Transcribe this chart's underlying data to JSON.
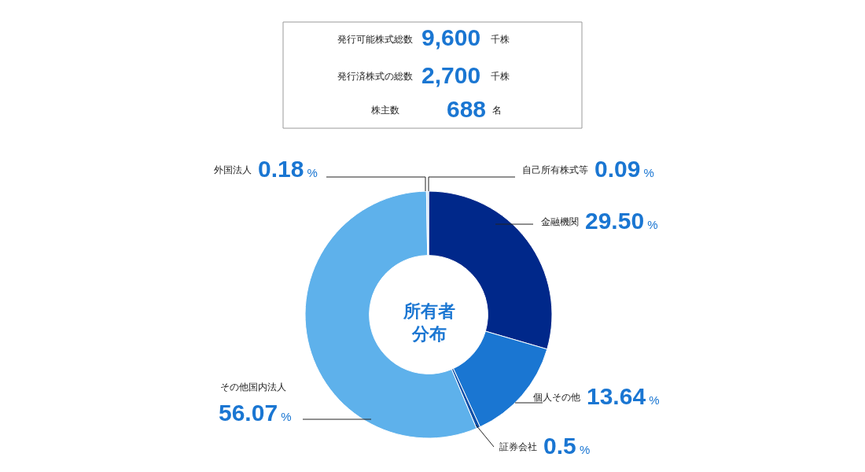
{
  "chart_data": [
    {
      "type": "other",
      "annotations": [
        "発行可能株式総数",
        "9,600",
        "千株",
        "発行済株式の総数",
        "2,700",
        "千株",
        "株主数",
        "688",
        "名"
      ]
    },
    {
      "type": "donut",
      "title": "所有者分布",
      "categories": [
        "金融機関",
        "個人その他",
        "証券会社",
        "その他国内法人",
        "外国法人",
        "自己所有株式等"
      ],
      "values": [
        29.5,
        13.64,
        0.5,
        56.07,
        0.18,
        0.09
      ],
      "value_labels": [
        "29.50%",
        "13.64%",
        "0.5%",
        "56.07%",
        "0.18%",
        "0.09%"
      ],
      "colors": [
        "#00288a",
        "#1a76d2",
        "#0d4fa8",
        "#5eb1eb",
        "#9ccdf2",
        "#1a76d2"
      ],
      "legend": false
    }
  ]
}
